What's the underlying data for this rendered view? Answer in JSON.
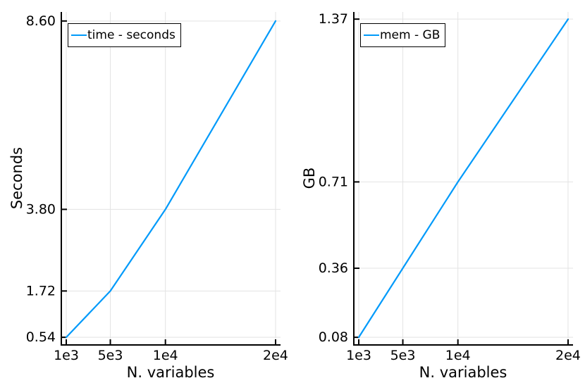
{
  "figure": {
    "background": "#ffffff"
  },
  "colors": {
    "series_line": "#009AFA",
    "grid": "#E3E3E3",
    "axis": "#000000",
    "text": "#000000",
    "legend_border": "#000000",
    "legend_background": "#ffffff"
  },
  "chart_data": [
    {
      "type": "line",
      "title": "",
      "xlabel": "N. variables",
      "ylabel": "Seconds",
      "x": [
        1000,
        5000,
        10000,
        20000
      ],
      "series": [
        {
          "name": "time - seconds",
          "values": [
            0.54,
            1.72,
            3.8,
            8.6
          ],
          "color": "#009AFA"
        }
      ],
      "xtick_values": [
        1000,
        5000,
        10000,
        20000
      ],
      "xtick_labels": [
        "1e3",
        "5e3",
        "1e4",
        "2e4"
      ],
      "ytick_values": [
        0.54,
        1.72,
        3.8,
        8.6
      ],
      "ytick_labels": [
        "0.54",
        "1.72",
        "3.80",
        "8.60"
      ],
      "xlim": [
        551,
        20449
      ],
      "ylim": [
        0.345,
        8.83
      ],
      "grid": true,
      "legend": {
        "position": "top-left",
        "label": "time - seconds"
      }
    },
    {
      "type": "line",
      "title": "",
      "xlabel": "N. variables",
      "ylabel": "GB",
      "x": [
        1000,
        5000,
        10000,
        20000
      ],
      "series": [
        {
          "name": "mem - GB",
          "values": [
            0.08,
            0.36,
            0.71,
            1.37
          ],
          "color": "#009AFA"
        }
      ],
      "xtick_values": [
        1000,
        5000,
        10000,
        20000
      ],
      "xtick_labels": [
        "1e3",
        "5e3",
        "1e4",
        "2e4"
      ],
      "ytick_values": [
        0.08,
        0.36,
        0.71,
        1.37
      ],
      "ytick_labels": [
        "0.08",
        "0.36",
        "0.71",
        "1.37"
      ],
      "xlim": [
        551,
        20449
      ],
      "ylim": [
        0.049,
        1.399
      ],
      "grid": true,
      "legend": {
        "position": "top-left",
        "label": "mem - GB"
      }
    }
  ]
}
